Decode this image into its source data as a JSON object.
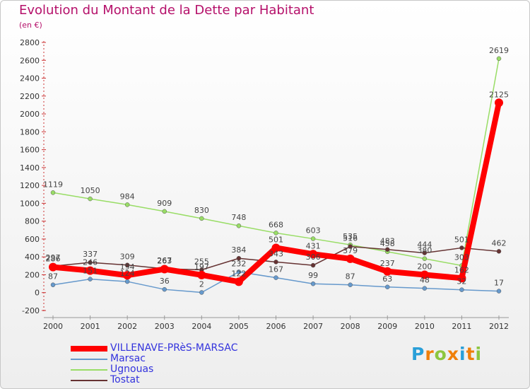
{
  "title": "Evolution du Montant de la Dette par Habitant",
  "subtitle": "(en €)",
  "logo": "Proxiti",
  "chart_data": {
    "type": "line",
    "x": [
      "2000",
      "2001",
      "2002",
      "2003",
      "2004",
      "2005",
      "2006",
      "2007",
      "2008",
      "2009",
      "2010",
      "2011",
      "2012"
    ],
    "ylim": [
      -200,
      2800
    ],
    "yticks": [
      -200,
      0,
      200,
      400,
      600,
      800,
      1000,
      1200,
      1400,
      1600,
      1800,
      2000,
      2200,
      2400,
      2600,
      2800
    ],
    "grid": false,
    "legend_position": "bottom-left",
    "series": [
      {
        "name": "VILLENAVE-PRèS-MARSAC",
        "color": "#ff0000",
        "values": [
          286,
          246,
          194,
          263,
          197,
          122,
          501,
          431,
          379,
          237,
          200,
          162,
          2125
        ],
        "labels": [
          "286",
          "246",
          "194",
          "263",
          "197",
          "122",
          "501",
          "431",
          "379",
          "237",
          "200",
          "162",
          "2125"
        ]
      },
      {
        "name": "Marsac",
        "color": "#6699cc",
        "values": [
          87,
          151,
          124,
          36,
          2,
          232,
          167,
          99,
          87,
          63,
          48,
          32,
          17
        ],
        "labels": [
          "87",
          "151",
          "124",
          "36",
          "2",
          "232",
          "167",
          "99",
          "87",
          "63",
          "48",
          "32",
          "17"
        ]
      },
      {
        "name": "Ugnouas",
        "color": "#99dd66",
        "values": [
          1119,
          1050,
          984,
          909,
          830,
          748,
          668,
          603,
          535,
          458,
          380,
          303,
          2619
        ],
        "labels": [
          "1119",
          "1050",
          "984",
          "909",
          "830",
          "748",
          "668",
          "603",
          "535",
          "458",
          "380",
          "303",
          "2619"
        ]
      },
      {
        "name": "Tostat",
        "color": "#663333",
        "values": [
          297,
          337,
          309,
          267,
          255,
          384,
          343,
          306,
          516,
          483,
          444,
          501,
          462
        ],
        "labels": [
          "297",
          "337",
          "309",
          "267",
          "255",
          "384",
          "343",
          "306",
          "516",
          "483",
          "444",
          "501",
          "462"
        ]
      }
    ]
  }
}
